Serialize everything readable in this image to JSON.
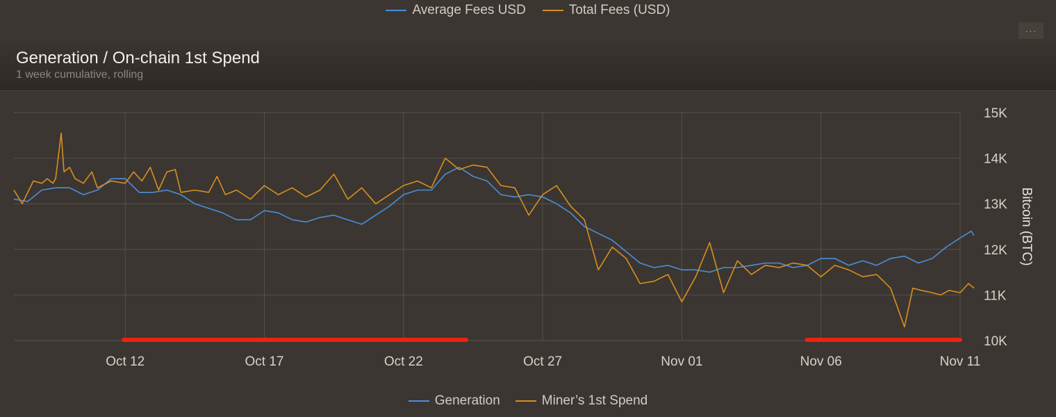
{
  "top_legend": [
    {
      "label": "Average Fees USD",
      "color": "#4a8fd8"
    },
    {
      "label": "Total Fees (USD)",
      "color": "#d98f20"
    }
  ],
  "panel": {
    "menu_label": "···",
    "title": "Generation / On-chain 1st Spend",
    "subtitle": "1 week cumulative, rolling"
  },
  "chart_data": {
    "type": "line",
    "x_labels": [
      "Oct 12",
      "Oct 17",
      "Oct 22",
      "Oct 27",
      "Nov 01",
      "Nov 06",
      "Nov 11"
    ],
    "x_tick_days": [
      4,
      9,
      14,
      19,
      24,
      29,
      34
    ],
    "x_range_days": [
      0,
      34
    ],
    "ylabel": "Bitcoin (BTC)",
    "y_ticks": [
      "10K",
      "11K",
      "12K",
      "13K",
      "14K",
      "15K"
    ],
    "ylim": [
      10000,
      15000
    ],
    "grid": true,
    "legend_position": "bottom",
    "series": [
      {
        "name": "Generation",
        "color": "#4a8fd8",
        "points": [
          [
            0.0,
            13100
          ],
          [
            0.5,
            13050
          ],
          [
            1.0,
            13300
          ],
          [
            1.5,
            13350
          ],
          [
            2.0,
            13350
          ],
          [
            2.5,
            13200
          ],
          [
            3.0,
            13300
          ],
          [
            3.5,
            13550
          ],
          [
            4.0,
            13550
          ],
          [
            4.5,
            13250
          ],
          [
            5.0,
            13250
          ],
          [
            5.5,
            13300
          ],
          [
            6.0,
            13200
          ],
          [
            6.5,
            13000
          ],
          [
            7.0,
            12900
          ],
          [
            7.5,
            12800
          ],
          [
            8.0,
            12650
          ],
          [
            8.5,
            12650
          ],
          [
            9.0,
            12850
          ],
          [
            9.5,
            12800
          ],
          [
            10.0,
            12650
          ],
          [
            10.5,
            12600
          ],
          [
            11.0,
            12700
          ],
          [
            11.5,
            12750
          ],
          [
            12.0,
            12650
          ],
          [
            12.5,
            12550
          ],
          [
            13.0,
            12750
          ],
          [
            13.5,
            12950
          ],
          [
            14.0,
            13200
          ],
          [
            14.5,
            13300
          ],
          [
            15.0,
            13300
          ],
          [
            15.5,
            13650
          ],
          [
            16.0,
            13800
          ],
          [
            16.5,
            13600
          ],
          [
            17.0,
            13500
          ],
          [
            17.5,
            13200
          ],
          [
            18.0,
            13150
          ],
          [
            18.5,
            13200
          ],
          [
            19.0,
            13150
          ],
          [
            19.5,
            13000
          ],
          [
            20.0,
            12800
          ],
          [
            20.5,
            12500
          ],
          [
            21.0,
            12350
          ],
          [
            21.5,
            12200
          ],
          [
            22.0,
            11950
          ],
          [
            22.5,
            11700
          ],
          [
            23.0,
            11600
          ],
          [
            23.5,
            11650
          ],
          [
            24.0,
            11550
          ],
          [
            24.5,
            11550
          ],
          [
            25.0,
            11500
          ],
          [
            25.5,
            11600
          ],
          [
            26.0,
            11600
          ],
          [
            26.5,
            11650
          ],
          [
            27.0,
            11700
          ],
          [
            27.5,
            11700
          ],
          [
            28.0,
            11600
          ],
          [
            28.5,
            11650
          ],
          [
            29.0,
            11800
          ],
          [
            29.5,
            11800
          ],
          [
            30.0,
            11650
          ],
          [
            30.5,
            11750
          ],
          [
            31.0,
            11650
          ],
          [
            31.5,
            11800
          ],
          [
            32.0,
            11850
          ],
          [
            32.5,
            11700
          ],
          [
            33.0,
            11800
          ],
          [
            33.5,
            12050
          ],
          [
            34.0,
            12250
          ],
          [
            34.4,
            12400
          ],
          [
            34.5,
            12300
          ]
        ]
      },
      {
        "name": "Miner’s 1st Spend",
        "color": "#d98f20",
        "points": [
          [
            0.0,
            13300
          ],
          [
            0.3,
            13000
          ],
          [
            0.7,
            13500
          ],
          [
            1.0,
            13450
          ],
          [
            1.2,
            13550
          ],
          [
            1.4,
            13450
          ],
          [
            1.5,
            13550
          ],
          [
            1.7,
            14550
          ],
          [
            1.8,
            13700
          ],
          [
            2.0,
            13800
          ],
          [
            2.2,
            13550
          ],
          [
            2.5,
            13450
          ],
          [
            2.8,
            13700
          ],
          [
            3.0,
            13350
          ],
          [
            3.5,
            13500
          ],
          [
            4.0,
            13450
          ],
          [
            4.3,
            13700
          ],
          [
            4.6,
            13500
          ],
          [
            4.9,
            13800
          ],
          [
            5.2,
            13300
          ],
          [
            5.5,
            13700
          ],
          [
            5.8,
            13750
          ],
          [
            6.0,
            13250
          ],
          [
            6.5,
            13300
          ],
          [
            7.0,
            13250
          ],
          [
            7.3,
            13600
          ],
          [
            7.6,
            13200
          ],
          [
            8.0,
            13300
          ],
          [
            8.5,
            13100
          ],
          [
            9.0,
            13400
          ],
          [
            9.5,
            13200
          ],
          [
            10.0,
            13350
          ],
          [
            10.5,
            13150
          ],
          [
            11.0,
            13300
          ],
          [
            11.5,
            13650
          ],
          [
            12.0,
            13100
          ],
          [
            12.5,
            13350
          ],
          [
            13.0,
            13000
          ],
          [
            13.5,
            13200
          ],
          [
            14.0,
            13400
          ],
          [
            14.5,
            13500
          ],
          [
            15.0,
            13350
          ],
          [
            15.5,
            14000
          ],
          [
            16.0,
            13750
          ],
          [
            16.5,
            13850
          ],
          [
            17.0,
            13800
          ],
          [
            17.5,
            13400
          ],
          [
            18.0,
            13350
          ],
          [
            18.5,
            12750
          ],
          [
            19.0,
            13200
          ],
          [
            19.5,
            13400
          ],
          [
            20.0,
            12950
          ],
          [
            20.5,
            12650
          ],
          [
            21.0,
            11550
          ],
          [
            21.5,
            12050
          ],
          [
            22.0,
            11800
          ],
          [
            22.5,
            11250
          ],
          [
            23.0,
            11300
          ],
          [
            23.5,
            11450
          ],
          [
            24.0,
            10850
          ],
          [
            24.5,
            11400
          ],
          [
            25.0,
            12150
          ],
          [
            25.5,
            11050
          ],
          [
            26.0,
            11750
          ],
          [
            26.5,
            11450
          ],
          [
            27.0,
            11650
          ],
          [
            27.5,
            11600
          ],
          [
            28.0,
            11700
          ],
          [
            28.5,
            11650
          ],
          [
            29.0,
            11400
          ],
          [
            29.5,
            11650
          ],
          [
            30.0,
            11550
          ],
          [
            30.5,
            11400
          ],
          [
            31.0,
            11450
          ],
          [
            31.5,
            11150
          ],
          [
            32.0,
            10300
          ],
          [
            32.3,
            11150
          ],
          [
            32.6,
            11100
          ],
          [
            33.0,
            11050
          ],
          [
            33.3,
            11000
          ],
          [
            33.6,
            11100
          ],
          [
            34.0,
            11050
          ],
          [
            34.3,
            11250
          ],
          [
            34.5,
            11150
          ]
        ]
      }
    ],
    "highlights": [
      {
        "from": 3.95,
        "to": 16.25,
        "color": "#ee2211"
      },
      {
        "from": 28.5,
        "to": 34.0,
        "color": "#ee2211"
      }
    ]
  }
}
